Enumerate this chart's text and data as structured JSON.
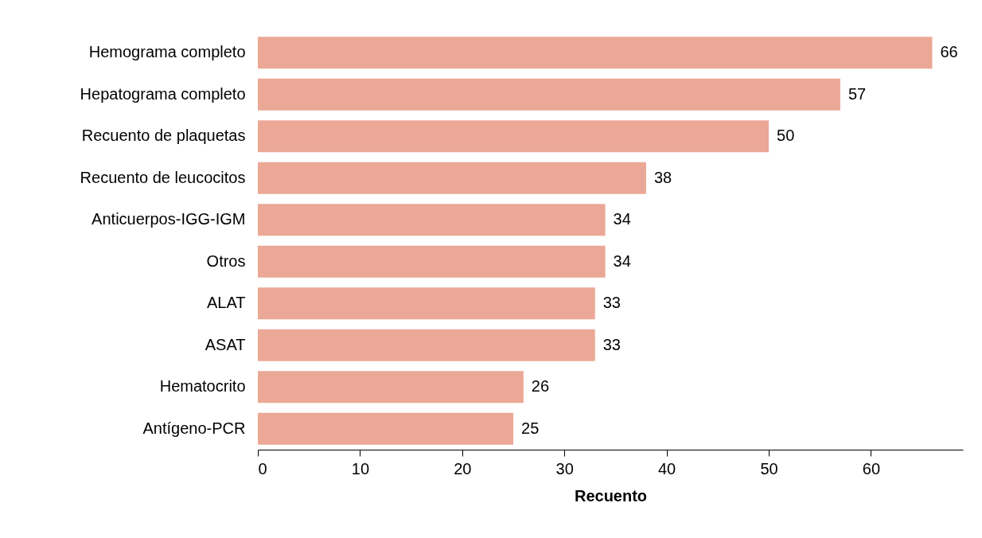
{
  "chart_data": {
    "type": "bar",
    "orientation": "horizontal",
    "xlabel": "Recuento",
    "categories": [
      "Hemograma completo",
      "Hepatograma completo",
      "Recuento de plaquetas",
      "Recuento de leucocitos",
      "Anticuerpos-IGG-IGM",
      "Otros",
      "ALAT",
      "ASAT",
      "Hematocrito",
      "Antígeno-PCR"
    ],
    "values": [
      66,
      57,
      50,
      38,
      34,
      34,
      33,
      33,
      26,
      25
    ],
    "color": "#eba896",
    "xlim": [
      0,
      69
    ],
    "xticks": [
      0,
      10,
      20,
      30,
      40,
      50,
      60
    ],
    "grid": false,
    "data_labels": true
  }
}
